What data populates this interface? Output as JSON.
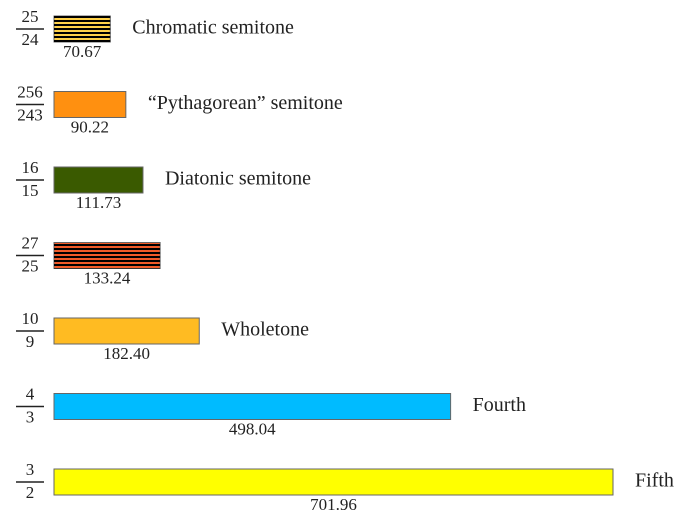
{
  "chart_data": {
    "type": "bar",
    "orientation": "horizontal",
    "categories": [
      "Chromatic semitone",
      "“Pythagorean” semitone",
      "Diatonic semitone",
      null,
      "Wholetone",
      "Fourth",
      "Fifth"
    ],
    "ratios": [
      {
        "numerator": 25,
        "denominator": 24
      },
      {
        "numerator": 256,
        "denominator": 243
      },
      {
        "numerator": 16,
        "denominator": 15
      },
      {
        "numerator": 27,
        "denominator": 25
      },
      {
        "numerator": 10,
        "denominator": 9
      },
      {
        "numerator": 4,
        "denominator": 3
      },
      {
        "numerator": 3,
        "denominator": 2
      }
    ],
    "values": [
      70.67,
      90.22,
      111.73,
      133.24,
      182.4,
      498.04,
      701.96
    ],
    "value_labels": [
      "70.67",
      "90.22",
      "111.73",
      "133.24",
      "182.40",
      "498.04",
      "701.96"
    ],
    "colors": [
      "#ffd24a",
      "#ff9010",
      "#3a5a00",
      "#f05a28",
      "#ffbb22",
      "#00bbff",
      "#ffff00"
    ],
    "hatched": [
      true,
      false,
      false,
      true,
      false,
      false,
      false
    ]
  }
}
